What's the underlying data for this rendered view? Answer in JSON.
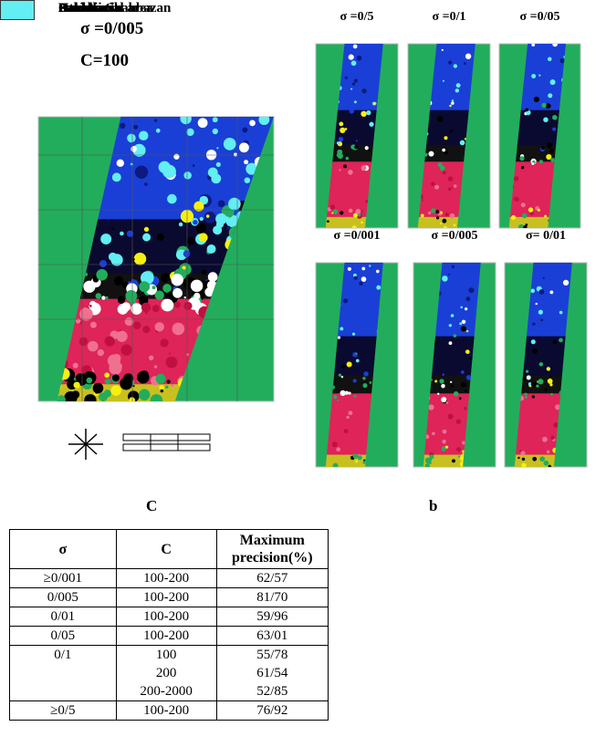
{
  "main": {
    "sigma_label": "σ =0/005",
    "c_label": "C=100"
  },
  "panels": [
    "σ =0/5",
    "σ =0/1",
    "σ =0/05",
    "σ =0/001",
    "σ =0/005",
    "σ= 0/01"
  ],
  "table_caption": "C",
  "legend_caption": "b",
  "table": {
    "header": [
      "σ",
      "C",
      "Maximum precision(%)"
    ],
    "rows": [
      [
        "≥0/001",
        "100-200",
        "62/57"
      ],
      [
        "0/005",
        "100-200",
        "81/70"
      ],
      [
        "0/01",
        "100-200",
        "59/96"
      ],
      [
        "0/05",
        "100-200",
        "63/01"
      ],
      [
        "0/1",
        [
          "100",
          "200",
          "200-2000"
        ],
        [
          "55/78",
          "61/54",
          "52/85"
        ]
      ],
      [
        "≥0/5",
        "100-200",
        "76/92"
      ]
    ]
  },
  "legend": [
    {
      "label": "Sarvak",
      "color": "#1a3fd6"
    },
    {
      "label": "Bakhtiari",
      "color": "#f5ef12"
    },
    {
      "label": "Kashkan",
      "color": "#22ad5c"
    },
    {
      "label": "Asmari-Shahbazan",
      "color": "#ffffff"
    },
    {
      "label": "Gachsaran",
      "color": "#de2458"
    },
    {
      "label": "Other",
      "color": "#000000"
    },
    {
      "label": "Residential area",
      "color": "#62eef3"
    }
  ]
}
